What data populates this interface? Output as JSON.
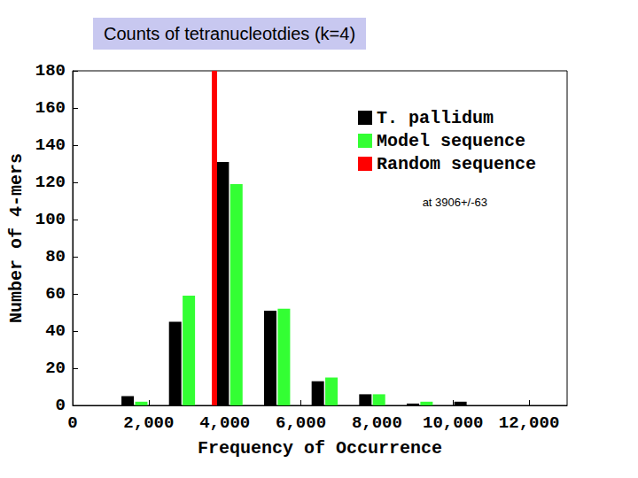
{
  "chart_data": {
    "type": "bar",
    "title": "Counts of tetranucleotdies (k=4)",
    "x_label": "Frequency of Occurrence",
    "y_label": "Number of 4-mers",
    "x": [
      1625,
      2875,
      4125,
      5375,
      6625,
      7875,
      9125,
      10375
    ],
    "series": [
      {
        "name": "T. pallidum",
        "color": "#000000",
        "values": [
          5,
          45,
          131,
          51,
          13,
          6,
          1,
          2
        ]
      },
      {
        "name": "Model sequence",
        "color": "#33ff33",
        "values": [
          2,
          59,
          119,
          52,
          15,
          6,
          2,
          0
        ]
      }
    ],
    "reference_line": {
      "name": "Random sequence",
      "color": "#ff0000",
      "value": 3906,
      "error": 63,
      "annotation": "at 3906+/-63"
    },
    "xlim": [
      0,
      13000
    ],
    "xticks": [
      0,
      2000,
      4000,
      6000,
      8000,
      10000,
      12000
    ],
    "ylim": [
      0,
      180
    ],
    "yticks": [
      0,
      20,
      40,
      60,
      80,
      100,
      120,
      140,
      160,
      180
    ],
    "grid": false,
    "legend": "upper right"
  }
}
